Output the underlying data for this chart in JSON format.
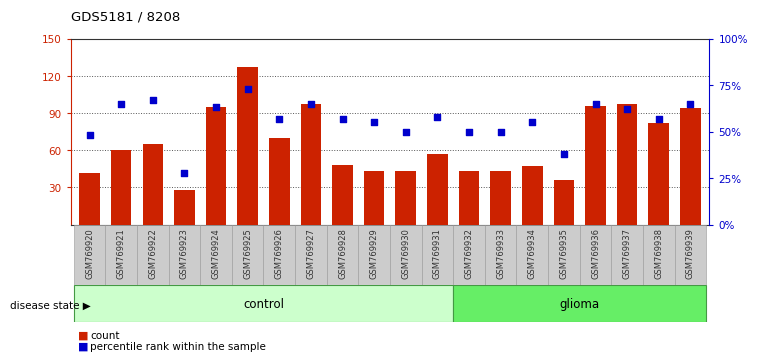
{
  "title": "GDS5181 / 8208",
  "samples": [
    "GSM769920",
    "GSM769921",
    "GSM769922",
    "GSM769923",
    "GSM769924",
    "GSM769925",
    "GSM769926",
    "GSM769927",
    "GSM769928",
    "GSM769929",
    "GSM769930",
    "GSM769931",
    "GSM769932",
    "GSM769933",
    "GSM769934",
    "GSM769935",
    "GSM769936",
    "GSM769937",
    "GSM769938",
    "GSM769939"
  ],
  "counts": [
    42,
    60,
    65,
    28,
    95,
    127,
    70,
    97,
    48,
    43,
    43,
    57,
    43,
    43,
    47,
    36,
    96,
    97,
    82,
    94
  ],
  "percentiles": [
    48,
    65,
    67,
    28,
    63,
    73,
    57,
    65,
    57,
    55,
    50,
    58,
    50,
    50,
    55,
    38,
    65,
    62,
    57,
    65
  ],
  "bar_color": "#cc2200",
  "dot_color": "#0000cc",
  "left_ylim": [
    0,
    150
  ],
  "left_yticks": [
    30,
    60,
    90,
    120,
    150
  ],
  "right_ylim": [
    0,
    100
  ],
  "right_yticks": [
    0,
    25,
    50,
    75,
    100
  ],
  "right_yticklabels": [
    "0%",
    "25%",
    "50%",
    "75%",
    "100%"
  ],
  "control_count": 12,
  "glioma_count": 8,
  "control_label": "control",
  "glioma_label": "glioma",
  "disease_state_label": "disease state",
  "legend_count_label": "count",
  "legend_pct_label": "percentile rank within the sample",
  "control_color": "#ccffcc",
  "glioma_color": "#66ee66",
  "tick_bg_color": "#cccccc",
  "xlabel_color": "#333333",
  "grid_color": "#555555",
  "spine_color": "#333333"
}
